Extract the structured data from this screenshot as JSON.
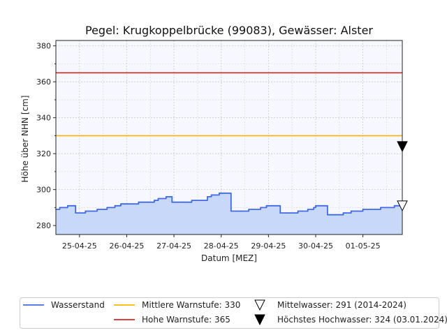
{
  "chart_data": {
    "type": "line",
    "title": "Pegel:  Krugkoppelbrücke (99083), Gewässer:  Alster",
    "xlabel": "Datum [MEZ]",
    "ylabel": "Höhe über NHN [cm]",
    "xlim": [
      "2025-04-24T12:00",
      "2025-05-01T20:00"
    ],
    "ylim": [
      275,
      383
    ],
    "x_ticks": [
      "25-04-25",
      "26-04-25",
      "27-04-25",
      "28-04-25",
      "29-04-25",
      "30-04-25",
      "01-05-25"
    ],
    "y_ticks": [
      280,
      300,
      320,
      340,
      360,
      380
    ],
    "grid": true,
    "legend_position": "bottom",
    "series": [
      {
        "name": "Wasserstand",
        "color": "#4169e1",
        "fill": "#c8d8f8",
        "x": [
          "2025-04-24T12:00",
          "2025-04-24T14:00",
          "2025-04-24T16:00",
          "2025-04-24T18:00",
          "2025-04-24T21:00",
          "2025-04-24T22:00",
          "2025-04-25T02:00",
          "2025-04-25T03:00",
          "2025-04-25T07:00",
          "2025-04-25T09:00",
          "2025-04-25T13:00",
          "2025-04-25T14:00",
          "2025-04-25T18:00",
          "2025-04-25T21:00",
          "2025-04-26T03:00",
          "2025-04-26T06:00",
          "2025-04-26T11:00",
          "2025-04-26T14:00",
          "2025-04-26T16:00",
          "2025-04-26T20:00",
          "2025-04-26T22:00",
          "2025-04-26T23:00",
          "2025-04-27T05:00",
          "2025-04-27T09:00",
          "2025-04-27T11:00",
          "2025-04-27T14:00",
          "2025-04-27T17:00",
          "2025-04-27T19:00",
          "2025-04-27T21:00",
          "2025-04-27T23:00",
          "2025-04-28T00:00",
          "2025-04-28T05:00",
          "2025-04-28T10:00",
          "2025-04-28T14:00",
          "2025-04-28T16:00",
          "2025-04-28T20:00",
          "2025-04-28T23:00",
          "2025-04-29T00:00",
          "2025-04-29T06:00",
          "2025-04-29T10:00",
          "2025-04-29T15:00",
          "2025-04-29T17:00",
          "2025-04-29T20:00",
          "2025-04-29T23:00",
          "2025-04-30T00:00",
          "2025-04-30T06:00",
          "2025-04-30T10:00",
          "2025-04-30T14:00",
          "2025-04-30T15:00",
          "2025-04-30T18:00",
          "2025-04-30T21:00",
          "2025-05-01T00:00",
          "2025-05-01T04:00",
          "2025-05-01T09:00",
          "2025-05-01T16:00",
          "2025-05-01T20:00"
        ],
        "y": [
          289,
          290,
          290,
          291,
          291,
          287,
          287,
          288,
          288,
          289,
          289,
          290,
          291,
          292,
          292,
          293,
          293,
          294,
          295,
          296,
          296,
          293,
          293,
          294,
          294,
          294,
          296,
          297,
          297,
          298,
          298,
          288,
          288,
          289,
          289,
          290,
          291,
          291,
          287,
          287,
          288,
          288,
          289,
          290,
          291,
          286,
          286,
          287,
          287,
          288,
          288,
          289,
          289,
          290,
          291,
          292
        ]
      }
    ],
    "reference_lines": [
      {
        "name": "Mittlere Warnstufe: 330",
        "value": 330,
        "color": "#ffb300"
      },
      {
        "name": "Hohe Warnstufe: 365",
        "value": 365,
        "color": "#d62728"
      }
    ],
    "markers": [
      {
        "name": "Mittelwasser: 291 (2014-2024)",
        "value": 291,
        "style": "open-triangle-down"
      },
      {
        "name": "Höchstes Hochwasser: 324 (03.01.2024)",
        "value": 324,
        "style": "filled-triangle-down"
      }
    ]
  }
}
